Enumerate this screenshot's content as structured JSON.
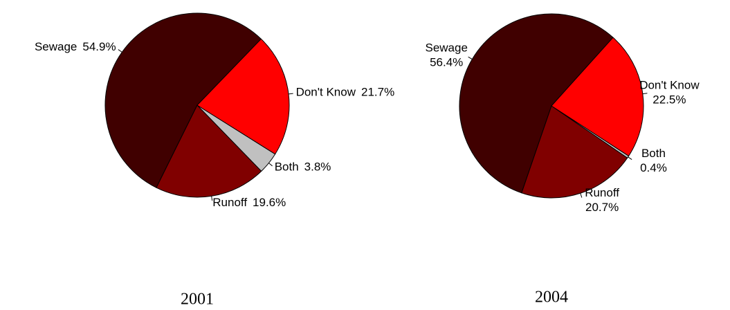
{
  "chart_data": [
    {
      "type": "pie",
      "title": "2001",
      "categories": [
        "Sewage",
        "Runoff",
        "Both",
        "Don't Know"
      ],
      "values": [
        54.9,
        19.6,
        3.8,
        21.7
      ],
      "value_labels": [
        "54.9%",
        "19.6%",
        "3.8%",
        "21.7%"
      ],
      "colors": [
        "#400000",
        "#800000",
        "#c0c0c0",
        "#ff0000"
      ]
    },
    {
      "type": "pie",
      "title": "2004",
      "categories": [
        "Sewage",
        "Runoff",
        "Both",
        "Don't Know"
      ],
      "values": [
        56.4,
        20.7,
        0.4,
        22.5
      ],
      "value_labels": [
        "56.4%",
        "20.7%",
        "0.4%",
        "22.5%"
      ],
      "colors": [
        "#400000",
        "#800000",
        "#c0c0c0",
        "#ff0000"
      ]
    }
  ]
}
